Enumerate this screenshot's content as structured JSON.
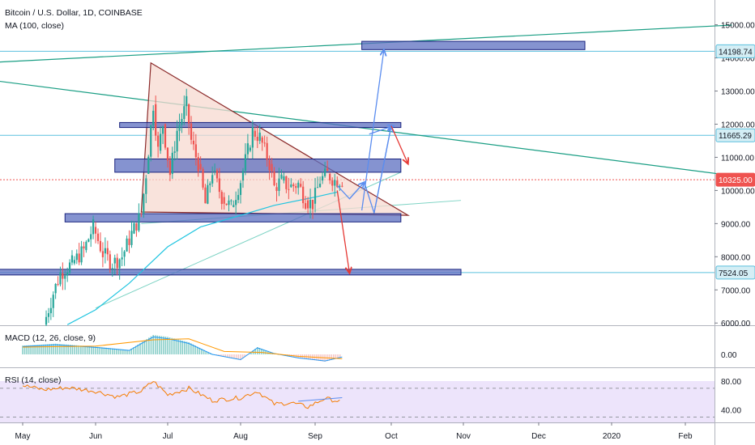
{
  "header": {
    "symbol_line": "Bitcoin / U.S. Dollar, 1D, COINBASE",
    "ma_line": "MA (100, close)"
  },
  "indicators": {
    "macd_label": "MACD (12, 26, close, 9)",
    "rsi_label": "RSI (14, close)"
  },
  "colors": {
    "up": "#26a69a",
    "down": "#ef5350",
    "ma": "#21c5e0",
    "trendline": "#1a9e84",
    "hline": "#5bc0de",
    "zone_fill": "#5c6fc0",
    "zone_stroke": "#1a237e",
    "triangle_fill": "#f7d9d0",
    "triangle_stroke": "#8b2a2a",
    "arrow_up": "#5b8def",
    "arrow_down": "#e53935",
    "rsi_band": "#ede4fb",
    "current_price": "#ef5350"
  },
  "chart_data": [
    {
      "type": "candlestick",
      "title": "Bitcoin / U.S. Dollar, 1D, COINBASE",
      "x_ticks": [
        "May",
        "Jun",
        "Jul",
        "Aug",
        "Sep",
        "Oct",
        "Nov",
        "Dec",
        "2020",
        "Feb"
      ],
      "y_ticks": [
        6000,
        7000,
        8000,
        9000,
        10000,
        11000,
        12000,
        13000,
        14000,
        15000
      ],
      "y_tick_labels": [
        "6000.00",
        "7000.00",
        "8000.00",
        "9000.00",
        "10000.00",
        "11000.00",
        "12000.00",
        "13000.00",
        "14000.00",
        "15000.00"
      ],
      "ylim": [
        5900,
        15550
      ],
      "price_labels": [
        {
          "value": 14198.74,
          "text": "14198.74",
          "kind": "line"
        },
        {
          "value": 11665.29,
          "text": "11665.29",
          "kind": "line"
        },
        {
          "value": 10325.0,
          "text": "10325.00",
          "kind": "current"
        },
        {
          "value": 7524.05,
          "text": "7524.05",
          "kind": "line"
        }
      ],
      "horizontal_lines": [
        14198.74,
        11665.29,
        7524.05
      ],
      "zones": [
        {
          "from": "Sep 20",
          "to": "Dec 20",
          "low": 14250,
          "high": 14500
        },
        {
          "from": "Jun 11",
          "to": "Oct 05",
          "low": 11900,
          "high": 12050
        },
        {
          "from": "Jun 09",
          "to": "Oct 05",
          "low": 10550,
          "high": 10950
        },
        {
          "from": "May 19",
          "to": "Oct 05",
          "low": 9050,
          "high": 9300
        },
        {
          "from": "Apr 25",
          "to": "Oct 30",
          "low": 7450,
          "high": 7620
        }
      ],
      "triangle": [
        [
          "Jun 24",
          13850
        ],
        [
          "Oct 08",
          9250
        ],
        [
          "Jun 20",
          9350
        ]
      ],
      "trendlines": [
        {
          "from": [
            "Apr 20",
            13600
          ],
          "to": [
            "Feb 20",
            14990
          ]
        },
        {
          "from": [
            "Apr 20",
            14000
          ],
          "to": [
            "Feb 20",
            10450
          ]
        },
        {
          "from": [
            "Jun 20",
            9000
          ],
          "to": [
            "Oct 30",
            9700
          ]
        },
        {
          "from": [
            "Jun 01",
            6450
          ],
          "to": [
            "Oct 05",
            10550
          ]
        }
      ],
      "projected_path": [
        [
          "Sep 10",
          10150
        ],
        [
          "Sep 15",
          9750
        ],
        [
          "Sep 21",
          10250
        ],
        [
          "Sep 25",
          9320
        ],
        [
          "Oct 01",
          11950
        ]
      ],
      "arrows": [
        {
          "from": [
            "Sep 15",
            9750
          ],
          "to": [
            "Sep 21",
            10250
          ],
          "color": "up"
        },
        {
          "from": [
            "Sep 25",
            9320
          ],
          "to": [
            "Oct 01",
            11950
          ],
          "color": "up"
        },
        {
          "from": [
            "Sep 20",
            9400
          ],
          "to": [
            "Sep 29",
            14250
          ],
          "color": "up"
        },
        {
          "from": [
            "Sep 23",
            11700
          ],
          "to": [
            "Oct 02",
            11950
          ],
          "color": "up"
        },
        {
          "from": [
            "Oct 01",
            11950
          ],
          "to": [
            "Oct 08",
            10800
          ],
          "color": "down"
        },
        {
          "from": [
            "Sep 10",
            10000
          ],
          "to": [
            "Sep 15",
            7500
          ],
          "color": "down"
        }
      ],
      "series": [
        {
          "name": "MA (100, close)",
          "points": [
            [
              "May 20",
              5950
            ],
            [
              "Jun 01",
              6400
            ],
            [
              "Jun 15",
              7200
            ],
            [
              "Jul 01",
              8300
            ],
            [
              "Jul 15",
              8900
            ],
            [
              "Aug 01",
              9250
            ],
            [
              "Aug 15",
              9550
            ],
            [
              "Sep 01",
              9800
            ],
            [
              "Sep 10",
              9950
            ]
          ]
        },
        {
          "name": "Price (close)",
          "points": [
            [
              "May 10",
              5950
            ],
            [
              "May 14",
              6900
            ],
            [
              "May 17",
              7500
            ],
            [
              "May 22",
              7800
            ],
            [
              "May 27",
              8200
            ],
            [
              "May 31",
              8900
            ],
            [
              "Jun 04",
              8100
            ],
            [
              "Jun 08",
              7800
            ],
            [
              "Jun 12",
              8000
            ],
            [
              "Jun 16",
              8700
            ],
            [
              "Jun 20",
              9300
            ],
            [
              "Jun 22",
              10500
            ],
            [
              "Jun 25",
              12600
            ],
            [
              "Jun 27",
              11200
            ],
            [
              "Jun 29",
              12000
            ],
            [
              "Jul 02",
              10500
            ],
            [
              "Jul 05",
              11800
            ],
            [
              "Jul 09",
              12600
            ],
            [
              "Jul 11",
              11500
            ],
            [
              "Jul 14",
              10800
            ],
            [
              "Jul 17",
              9600
            ],
            [
              "Jul 20",
              10600
            ],
            [
              "Jul 24",
              9800
            ],
            [
              "Jul 28",
              9500
            ],
            [
              "Aug 01",
              10300
            ],
            [
              "Aug 04",
              11200
            ],
            [
              "Aug 06",
              11800
            ],
            [
              "Aug 09",
              11600
            ],
            [
              "Aug 13",
              10800
            ],
            [
              "Aug 15",
              10100
            ],
            [
              "Aug 18",
              10300
            ],
            [
              "Aug 21",
              10100
            ],
            [
              "Aug 25",
              10200
            ],
            [
              "Aug 28",
              9700
            ],
            [
              "Aug 31",
              9600
            ],
            [
              "Sep 03",
              10300
            ],
            [
              "Sep 06",
              10500
            ],
            [
              "Sep 09",
              10300
            ],
            [
              "Sep 12",
              10325
            ]
          ]
        }
      ]
    },
    {
      "type": "histogram",
      "title": "MACD (12, 26, close, 9)",
      "y_ticks": [
        0
      ],
      "y_tick_labels": [
        "0.00"
      ],
      "series": [
        {
          "name": "MACD",
          "points": [
            [
              "May 01",
              180
            ],
            [
              "May 15",
              220
            ],
            [
              "Jun 01",
              160
            ],
            [
              "Jun 15",
              90
            ],
            [
              "Jun 25",
              400
            ],
            [
              "Jul 01",
              360
            ],
            [
              "Jul 10",
              250
            ],
            [
              "Jul 20",
              0
            ],
            [
              "Aug 01",
              -120
            ],
            [
              "Aug 08",
              150
            ],
            [
              "Aug 15",
              20
            ],
            [
              "Aug 25",
              -80
            ],
            [
              "Sep 05",
              -150
            ],
            [
              "Sep 12",
              -60
            ]
          ]
        },
        {
          "name": "Signal",
          "points": [
            [
              "May 01",
              150
            ],
            [
              "Jun 01",
              170
            ],
            [
              "Jun 25",
              300
            ],
            [
              "Jul 10",
              320
            ],
            [
              "Jul 25",
              60
            ],
            [
              "Aug 10",
              40
            ],
            [
              "Aug 25",
              -40
            ],
            [
              "Sep 12",
              -90
            ]
          ]
        }
      ]
    },
    {
      "type": "line",
      "title": "RSI (14, close)",
      "y_ticks": [
        40,
        80
      ],
      "y_tick_labels": [
        "40.00",
        "80.00"
      ],
      "ylim": [
        30,
        90
      ],
      "bands": [
        30,
        70
      ],
      "series": [
        {
          "name": "RSI",
          "points": [
            [
              "May 01",
              74
            ],
            [
              "May 10",
              68
            ],
            [
              "May 20",
              71
            ],
            [
              "Jun 01",
              66
            ],
            [
              "Jun 10",
              58
            ],
            [
              "Jun 20",
              66
            ],
            [
              "Jun 25",
              80
            ],
            [
              "Jul 01",
              61
            ],
            [
              "Jul 10",
              70
            ],
            [
              "Jul 20",
              53
            ],
            [
              "Aug 01",
              57
            ],
            [
              "Aug 08",
              66
            ],
            [
              "Aug 15",
              48
            ],
            [
              "Aug 22",
              50
            ],
            [
              "Aug 29",
              44
            ],
            [
              "Sep 05",
              56
            ],
            [
              "Sep 12",
              51
            ]
          ]
        }
      ]
    }
  ]
}
